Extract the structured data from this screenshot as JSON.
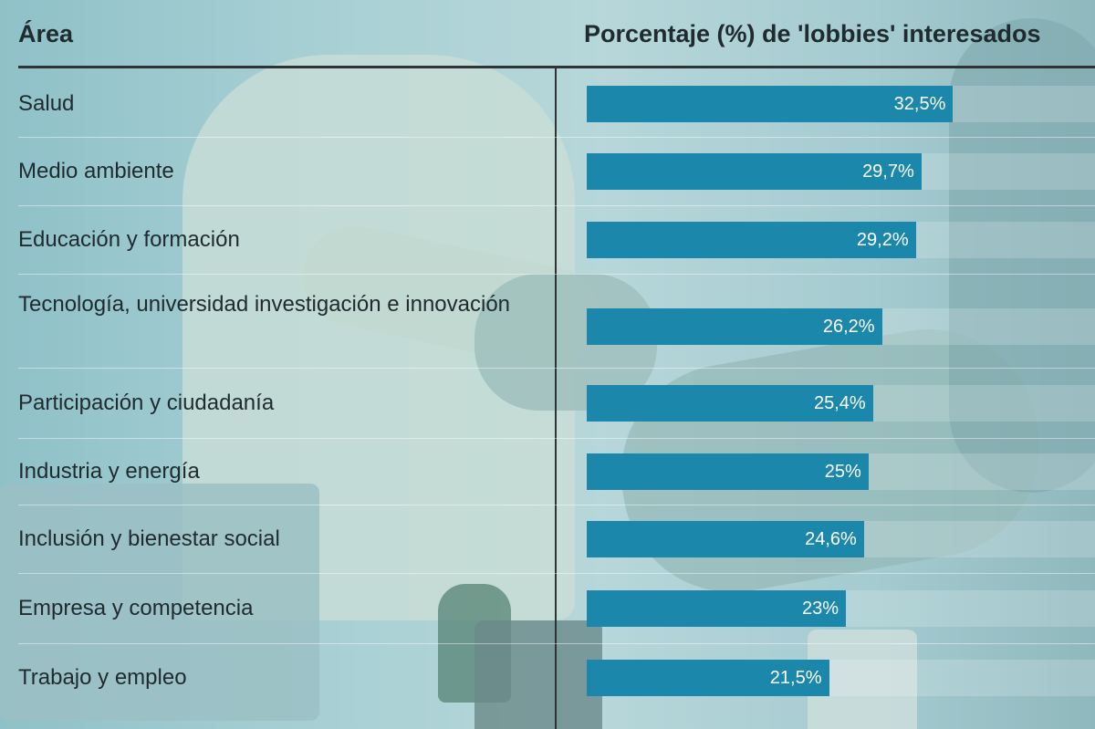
{
  "header": {
    "area_label": "Área",
    "pct_label": "Porcentaje (%) de 'lobbies' interesados"
  },
  "colors": {
    "bar": "#1b88ab",
    "text": "#1f2b2f",
    "value_text": "#ffffff"
  },
  "chart_data": {
    "type": "bar",
    "orientation": "horizontal",
    "categories": [
      "Salud",
      "Medio ambiente",
      "Educación y formación",
      "Tecnología, universidad investigación e innovación",
      "Participación y ciudadanía",
      "Industria y energía",
      "Inclusión y bienestar social",
      "Empresa y competencia",
      "Trabajo y empleo"
    ],
    "values": [
      32.5,
      29.7,
      29.2,
      26.2,
      25.4,
      25,
      24.6,
      23,
      21.5
    ],
    "value_labels": [
      "32,5%",
      "29,7%",
      "29,2%",
      "26,2%",
      "25,4%",
      "25%",
      "24,6%",
      "23%",
      "21,5%"
    ],
    "xlim": [
      0,
      45
    ]
  }
}
